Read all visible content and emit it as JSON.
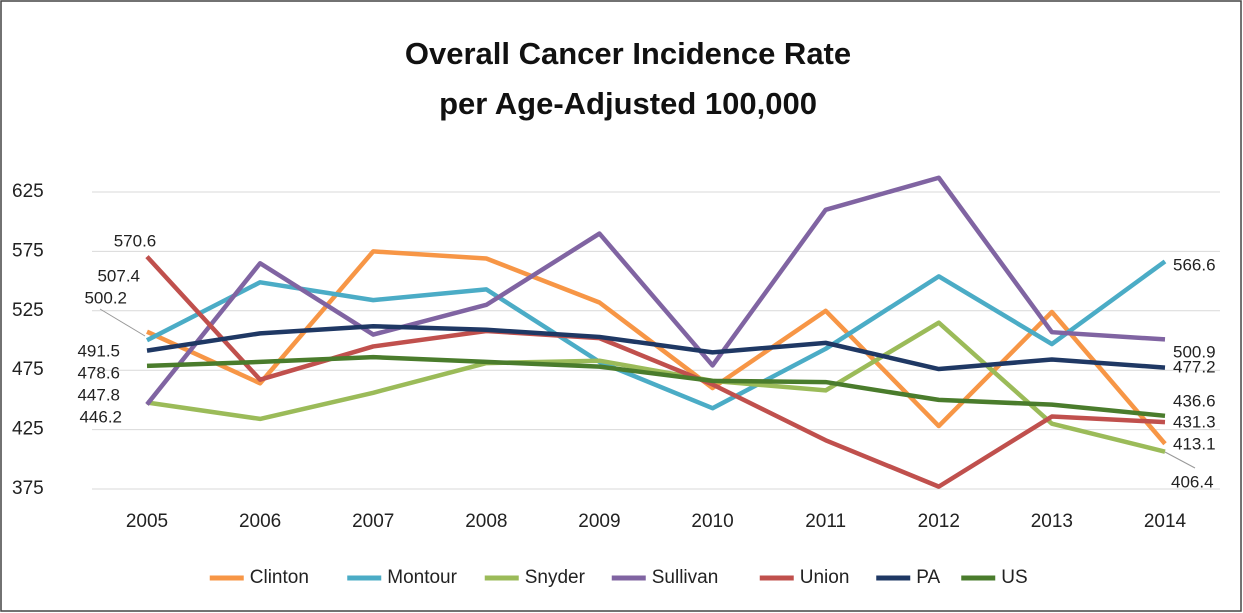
{
  "chart_data": {
    "type": "line",
    "title": [
      "Overall Cancer Incidence Rate",
      "per Age-Adjusted 100,000"
    ],
    "categories": [
      "2005",
      "2006",
      "2007",
      "2008",
      "2009",
      "2010",
      "2011",
      "2012",
      "2013",
      "2014"
    ],
    "series": [
      {
        "name": "Clinton",
        "color": "#f79646",
        "values": [
          507.4,
          464,
          575,
          569,
          532,
          460,
          525,
          428,
          524,
          413.1
        ]
      },
      {
        "name": "Montour",
        "color": "#4bacc6",
        "values": [
          500.2,
          549,
          534,
          543,
          482,
          443,
          493,
          554,
          497,
          566.6
        ]
      },
      {
        "name": "Snyder",
        "color": "#9bbb59",
        "values": [
          447.8,
          434,
          456,
          481,
          483,
          466,
          458,
          515,
          430,
          406.4
        ]
      },
      {
        "name": "Sullivan",
        "color": "#8064a2",
        "values": [
          446.2,
          565,
          505,
          530,
          590,
          479,
          610,
          637,
          507,
          500.9
        ]
      },
      {
        "name": "Union",
        "color": "#c0504d",
        "values": [
          570.6,
          467,
          495,
          508,
          502,
          463,
          416,
          377,
          436,
          431.3
        ]
      },
      {
        "name": "PA",
        "color": "#1f3864",
        "values": [
          491.5,
          506,
          512,
          509,
          503,
          490,
          498,
          476,
          484,
          477.2
        ]
      },
      {
        "name": "US",
        "color": "#4a7c2c",
        "values": [
          478.6,
          482,
          486,
          482,
          478,
          466,
          465,
          450,
          446,
          436.6
        ]
      }
    ],
    "ylim": [
      375,
      650
    ],
    "yticks": [
      375,
      425,
      475,
      525,
      575,
      625
    ],
    "grid": true,
    "legend": "bottom"
  }
}
